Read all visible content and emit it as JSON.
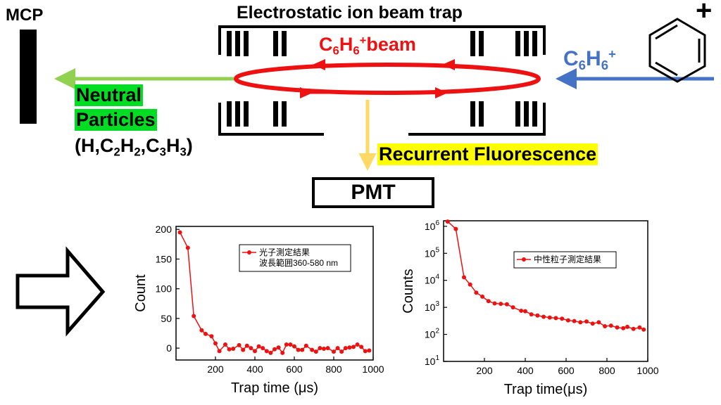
{
  "diagram": {
    "mcp_label": "MCP",
    "trap_title": "Electrostatic ion beam trap",
    "beam_label": {
      "pre": "C",
      "s1": "6",
      "mid": "H",
      "s2": "6",
      "sup": "+",
      "post": "beam"
    },
    "neutral_line1": "Neutral",
    "neutral_line2": "Particles",
    "neutral_species": {
      "p1": "(H,C",
      "s1": "2",
      "p2": "H",
      "s2": "2",
      "p3": ",C",
      "s3": "3",
      "p4": "H",
      "s4": "3",
      "p5": ")"
    },
    "ion_label": {
      "pre": "C",
      "s1": "6",
      "mid": "H",
      "s2": "6",
      "sup": "+"
    },
    "benzene_charge": "+",
    "rf_label": "Recurrent Fluorescence",
    "pmt_label": "PMT",
    "colors": {
      "beam": "#ee1111",
      "neutral_arrow": "#92d050",
      "ion_arrow": "#4472c4",
      "pmt_arrow": "#ffd966",
      "neutral_hl": "#00dd22",
      "rf_hl": "#ffff00"
    }
  },
  "chart_data": [
    {
      "type": "line",
      "title": "",
      "xlabel": "Trap time (μs)",
      "ylabel": "Count",
      "xlim": [
        0,
        1000
      ],
      "ylim": [
        -20,
        205
      ],
      "xticks": [
        200,
        400,
        600,
        800,
        1000
      ],
      "yticks": [
        0,
        50,
        100,
        150,
        200
      ],
      "legend_position": "top-right",
      "legend_lines": [
        "光子測定結果",
        "波長範囲360-580 nm"
      ],
      "series": [
        {
          "name": "光子測定結果",
          "color": "#ee1111",
          "x": [
            20,
            60,
            90,
            130,
            150,
            180,
            200,
            220,
            250,
            270,
            290,
            320,
            340,
            360,
            380,
            400,
            420,
            440,
            460,
            480,
            500,
            520,
            540,
            560,
            580,
            600,
            620,
            640,
            660,
            690,
            710,
            730,
            750,
            770,
            800,
            820,
            840,
            860,
            880,
            900,
            920,
            940,
            960,
            980
          ],
          "y": [
            195,
            169,
            54,
            30,
            24,
            20,
            8,
            -5,
            6,
            -2,
            -1,
            5,
            -3,
            4,
            0,
            -5,
            3,
            0,
            -5,
            -8,
            -2,
            1,
            -8,
            6,
            6,
            3,
            -3,
            -3,
            4,
            -3,
            -6,
            0,
            -1,
            0,
            -6,
            0,
            -6,
            0,
            1,
            2,
            6,
            2,
            -5,
            -4
          ]
        }
      ]
    },
    {
      "type": "line",
      "title": "",
      "xlabel": "Trap time(μs)",
      "ylabel": "Counts",
      "xlim": [
        0,
        1000
      ],
      "ylim": [
        10,
        1600000
      ],
      "yscale": "log",
      "xticks": [
        200,
        400,
        600,
        800,
        1000
      ],
      "ytick_labels": [
        {
          "base": "10",
          "exp": "1"
        },
        {
          "base": "10",
          "exp": "2"
        },
        {
          "base": "10",
          "exp": "3"
        },
        {
          "base": "10",
          "exp": "4"
        },
        {
          "base": "10",
          "exp": "5"
        },
        {
          "base": "10",
          "exp": "6"
        }
      ],
      "legend_position": "top-right",
      "legend_lines": [
        "中性粒子測定結果"
      ],
      "series": [
        {
          "name": "中性粒子測定結果",
          "color": "#ee1111",
          "x": [
            20,
            60,
            100,
            130,
            160,
            190,
            220,
            250,
            280,
            310,
            340,
            380,
            400,
            430,
            460,
            490,
            520,
            550,
            580,
            610,
            640,
            670,
            700,
            730,
            760,
            790,
            820,
            850,
            880,
            900,
            930,
            960,
            980
          ],
          "y": [
            1500000,
            800000,
            13000,
            7000,
            3500,
            2500,
            1700,
            1400,
            1350,
            1300,
            1000,
            750,
            720,
            550,
            500,
            450,
            420,
            400,
            380,
            330,
            310,
            280,
            300,
            250,
            280,
            200,
            210,
            180,
            170,
            190,
            160,
            180,
            150
          ]
        }
      ]
    }
  ]
}
